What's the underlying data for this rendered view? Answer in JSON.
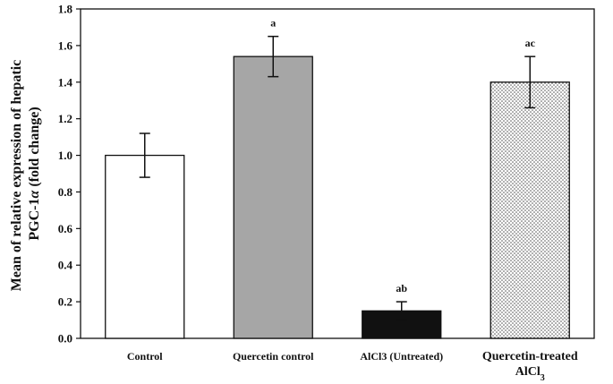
{
  "chart_data": {
    "type": "bar",
    "ylabel_line1": "Mean of relative expression of hepatic",
    "ylabel_line2_prefix": "PGC-1",
    "ylabel_line2_greek": "α",
    "ylabel_line2_suffix": " (fold change)",
    "xlabel": "",
    "ylim": [
      0,
      1.8
    ],
    "yticks": [
      "0.0",
      "0.2",
      "0.4",
      "0.6",
      "0.8",
      "1.0",
      "1.2",
      "1.4",
      "1.6",
      "1.8"
    ],
    "grid": false,
    "categories": [
      {
        "label": "Control",
        "label2": "",
        "value": 1.0,
        "error": 0.12,
        "significance": "",
        "fill": "white"
      },
      {
        "label": "Quercetin control",
        "label2": "",
        "value": 1.54,
        "error": 0.11,
        "significance": "a",
        "fill": "gray"
      },
      {
        "label": "AlCl3 (Untreated)",
        "label2": "",
        "value": 0.15,
        "error": 0.05,
        "significance": "ab",
        "fill": "black"
      },
      {
        "label": "Quercetin-treated",
        "label2": "AlCl3",
        "value": 1.4,
        "error": 0.14,
        "significance": "ac",
        "fill": "dotted"
      }
    ],
    "colors": {
      "white": "#ffffff",
      "gray": "#a6a6a6",
      "black": "#111111",
      "outline": "#111111"
    }
  }
}
